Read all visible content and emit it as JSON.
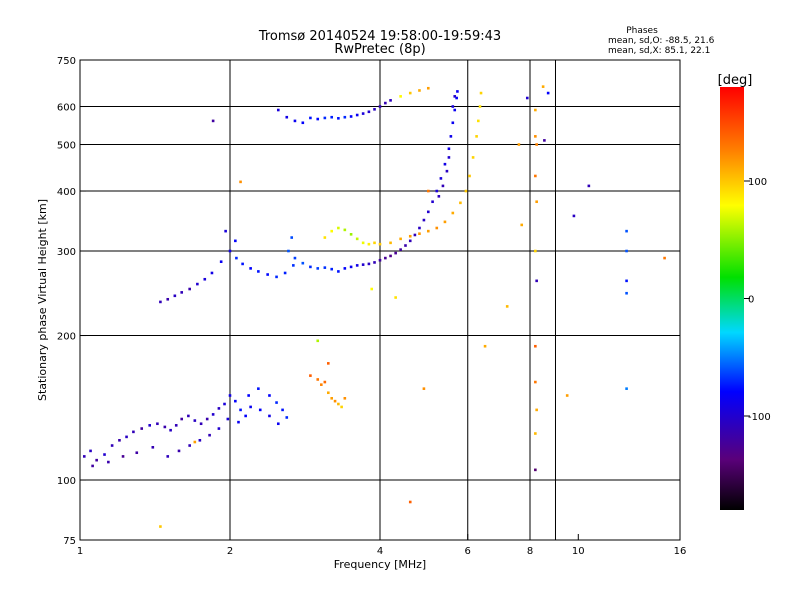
{
  "chart_data": {
    "type": "scatter",
    "title": "Tromsø 20140524 19:58:00-19:59:43",
    "subtitle": "RwPretec (8p)",
    "xlabel": "Frequency [MHz]",
    "ylabel": "Stationary phase Virtual Height [km]",
    "x_scale": "log",
    "y_scale": "log",
    "xlim": [
      1,
      16
    ],
    "ylim": [
      75,
      750
    ],
    "x_ticks": [
      1,
      2,
      4,
      6,
      8,
      10,
      16
    ],
    "y_ticks": [
      75,
      100,
      200,
      300,
      400,
      500,
      600,
      750
    ],
    "grid_x": [
      2,
      4,
      6,
      8,
      9
    ],
    "grid_y": [
      100,
      200,
      300,
      400,
      500,
      600
    ],
    "stats": {
      "header": "Phases",
      "line_o": "mean, sd,O: -88.5, 21.6",
      "line_x": "mean, sd,X:  85.1, 22.1"
    },
    "colorbar": {
      "label": "[deg]",
      "range": [
        -180,
        180
      ],
      "ticks": [
        100,
        0,
        -100
      ],
      "tick_labels": [
        "100",
        "0",
        "-100"
      ]
    },
    "series": [
      {
        "points": [
          [
            1.02,
            112,
            -110
          ],
          [
            1.05,
            115,
            -105
          ],
          [
            1.08,
            110,
            -120
          ],
          [
            1.12,
            113,
            -100
          ],
          [
            1.16,
            118,
            -110
          ],
          [
            1.2,
            121,
            -115
          ],
          [
            1.24,
            123,
            -105
          ],
          [
            1.28,
            126,
            -110
          ],
          [
            1.33,
            128,
            -120
          ],
          [
            1.38,
            130,
            -100
          ],
          [
            1.43,
            131,
            -110
          ],
          [
            1.48,
            129,
            -115
          ],
          [
            1.52,
            127,
            -105
          ],
          [
            1.56,
            130,
            -110
          ],
          [
            1.6,
            134,
            -120
          ],
          [
            1.65,
            136,
            -110
          ],
          [
            1.7,
            133,
            -105
          ],
          [
            1.75,
            131,
            -110
          ],
          [
            1.8,
            134,
            -115
          ],
          [
            1.85,
            137,
            -100
          ],
          [
            1.9,
            141,
            -105
          ],
          [
            1.95,
            144,
            -95
          ],
          [
            2.0,
            150,
            -90
          ],
          [
            2.05,
            146,
            -80
          ],
          [
            2.1,
            140,
            -75
          ],
          [
            2.15,
            136,
            -80
          ],
          [
            2.2,
            142,
            -85
          ],
          [
            2.3,
            140,
            -80
          ],
          [
            2.4,
            136,
            -90
          ],
          [
            2.5,
            131,
            -85
          ],
          [
            2.55,
            140,
            -75
          ],
          [
            2.6,
            135,
            -70
          ],
          [
            1.06,
            107,
            -120
          ],
          [
            1.14,
            109,
            -115
          ],
          [
            1.22,
            112,
            -125
          ],
          [
            1.3,
            114,
            -118
          ],
          [
            1.4,
            117,
            -112
          ],
          [
            1.5,
            112,
            -108
          ],
          [
            1.58,
            115,
            -115
          ],
          [
            1.66,
            118,
            -110
          ],
          [
            1.74,
            121,
            -105
          ],
          [
            1.82,
            124,
            -110
          ],
          [
            1.9,
            128,
            -100
          ],
          [
            1.98,
            134,
            -95
          ],
          [
            2.08,
            132,
            -85
          ],
          [
            2.18,
            150,
            -80
          ],
          [
            2.28,
            155,
            -75
          ],
          [
            2.4,
            150,
            -80
          ],
          [
            2.48,
            145,
            -70
          ],
          [
            1.45,
            235,
            -110
          ],
          [
            1.5,
            238,
            -115
          ],
          [
            1.55,
            242,
            -105
          ],
          [
            1.6,
            246,
            -110
          ],
          [
            1.66,
            250,
            -115
          ],
          [
            1.72,
            256,
            -100
          ],
          [
            1.78,
            262,
            -95
          ],
          [
            1.84,
            270,
            -90
          ],
          [
            1.92,
            285,
            -85
          ],
          [
            2.0,
            300,
            -90
          ],
          [
            2.05,
            315,
            -80
          ],
          [
            1.96,
            330,
            -95
          ],
          [
            2.06,
            290,
            -70
          ],
          [
            2.12,
            282,
            -75
          ],
          [
            2.2,
            276,
            -80
          ],
          [
            2.28,
            272,
            -75
          ],
          [
            2.38,
            268,
            -78
          ],
          [
            2.48,
            265,
            -70
          ],
          [
            2.58,
            270,
            -72
          ],
          [
            2.68,
            280,
            -68
          ],
          [
            2.62,
            300,
            -60
          ],
          [
            2.66,
            320,
            -62
          ],
          [
            2.7,
            290,
            -65
          ],
          [
            2.8,
            283,
            -60
          ],
          [
            2.9,
            278,
            -70
          ],
          [
            3.0,
            276,
            -65
          ],
          [
            3.1,
            277,
            -68
          ],
          [
            3.2,
            275,
            -72
          ],
          [
            3.3,
            272,
            -75
          ],
          [
            3.4,
            276,
            -80
          ],
          [
            3.5,
            278,
            -85
          ],
          [
            3.6,
            280,
            -90
          ],
          [
            3.7,
            281,
            -100
          ],
          [
            3.8,
            282,
            -105
          ],
          [
            3.9,
            284,
            -110
          ],
          [
            4.0,
            287,
            -120
          ],
          [
            4.1,
            290,
            -125
          ],
          [
            4.2,
            293,
            -130
          ],
          [
            4.3,
            297,
            -125
          ],
          [
            4.4,
            302,
            -120
          ],
          [
            4.5,
            308,
            -115
          ],
          [
            4.6,
            315,
            -110
          ],
          [
            4.7,
            324,
            -110
          ],
          [
            4.8,
            335,
            -105
          ],
          [
            4.9,
            348,
            -105
          ],
          [
            5.0,
            362,
            -100
          ],
          [
            5.1,
            380,
            -100
          ],
          [
            5.2,
            400,
            -95
          ],
          [
            5.3,
            425,
            -95
          ],
          [
            5.4,
            455,
            -90
          ],
          [
            5.5,
            490,
            -90
          ],
          [
            5.55,
            520,
            -88
          ],
          [
            5.6,
            555,
            -85
          ],
          [
            5.65,
            590,
            -85
          ],
          [
            5.7,
            625,
            -82
          ],
          [
            5.72,
            645,
            -85
          ],
          [
            5.5,
            470,
            -100
          ],
          [
            5.45,
            440,
            -105
          ],
          [
            5.35,
            410,
            -110
          ],
          [
            5.25,
            390,
            -108
          ],
          [
            5.6,
            600,
            -95
          ],
          [
            5.65,
            630,
            -100
          ],
          [
            3.1,
            320,
            90
          ],
          [
            3.2,
            330,
            80
          ],
          [
            3.3,
            335,
            70
          ],
          [
            3.4,
            332,
            60
          ],
          [
            3.5,
            325,
            55
          ],
          [
            3.6,
            318,
            65
          ],
          [
            3.7,
            312,
            75
          ],
          [
            3.8,
            310,
            85
          ],
          [
            3.9,
            312,
            95
          ],
          [
            4.0,
            310,
            100
          ],
          [
            4.2,
            312,
            105
          ],
          [
            4.4,
            318,
            110
          ],
          [
            4.6,
            322,
            115
          ],
          [
            4.8,
            326,
            118
          ],
          [
            5.0,
            330,
            115
          ],
          [
            5.2,
            335,
            120
          ],
          [
            5.4,
            345,
            115
          ],
          [
            5.6,
            360,
            110
          ],
          [
            5.8,
            378,
            105
          ],
          [
            5.95,
            400,
            100
          ],
          [
            6.05,
            430,
            100
          ],
          [
            6.15,
            470,
            95
          ],
          [
            6.25,
            520,
            95
          ],
          [
            6.3,
            560,
            90
          ],
          [
            6.35,
            600,
            90
          ],
          [
            6.38,
            640,
            95
          ],
          [
            2.5,
            590,
            -95
          ],
          [
            2.6,
            570,
            -90
          ],
          [
            2.7,
            560,
            -85
          ],
          [
            2.8,
            555,
            -80
          ],
          [
            2.9,
            568,
            -75
          ],
          [
            3.0,
            565,
            -78
          ],
          [
            3.1,
            568,
            -70
          ],
          [
            3.2,
            570,
            -72
          ],
          [
            3.3,
            567,
            -75
          ],
          [
            3.4,
            570,
            -70
          ],
          [
            3.5,
            572,
            -80
          ],
          [
            3.6,
            576,
            -85
          ],
          [
            3.7,
            580,
            -95
          ],
          [
            3.8,
            585,
            -100
          ],
          [
            3.9,
            592,
            -105
          ],
          [
            4.0,
            600,
            -110
          ],
          [
            4.1,
            610,
            -112
          ],
          [
            4.2,
            618,
            -108
          ],
          [
            4.4,
            630,
            80
          ],
          [
            4.6,
            640,
            100
          ],
          [
            4.8,
            648,
            110
          ],
          [
            5.0,
            655,
            115
          ],
          [
            2.9,
            165,
            140
          ],
          [
            3.0,
            162,
            130
          ],
          [
            3.05,
            158,
            125
          ],
          [
            3.1,
            160,
            135
          ],
          [
            3.15,
            175,
            140
          ],
          [
            3.15,
            152,
            110
          ],
          [
            3.2,
            148,
            115
          ],
          [
            3.25,
            146,
            120
          ],
          [
            3.3,
            144,
            105
          ],
          [
            3.35,
            142,
            95
          ],
          [
            8.2,
            590,
            110
          ],
          [
            8.2,
            520,
            120
          ],
          [
            8.25,
            500,
            125
          ],
          [
            8.2,
            430,
            130
          ],
          [
            8.25,
            380,
            115
          ],
          [
            8.2,
            300,
            95
          ],
          [
            8.25,
            260,
            -110
          ],
          [
            8.2,
            190,
            140
          ],
          [
            8.2,
            160,
            130
          ],
          [
            8.25,
            140,
            110
          ],
          [
            8.2,
            125,
            105
          ],
          [
            8.2,
            105,
            -140
          ],
          [
            7.6,
            500,
            115
          ],
          [
            7.7,
            340,
            110
          ],
          [
            7.9,
            625,
            -100
          ],
          [
            8.5,
            660,
            110
          ],
          [
            8.55,
            510,
            -120
          ],
          [
            8.7,
            640,
            -80
          ],
          [
            10.5,
            410,
            -110
          ],
          [
            12.5,
            330,
            -60
          ],
          [
            12.5,
            300,
            -60
          ],
          [
            12.5,
            260,
            -75
          ],
          [
            12.5,
            245,
            -60
          ],
          [
            12.5,
            155,
            -50
          ],
          [
            14.9,
            290,
            130
          ],
          [
            9.8,
            355,
            -105
          ],
          [
            9.5,
            150,
            115
          ],
          [
            1.85,
            560,
            -120
          ],
          [
            2.1,
            418,
            120
          ],
          [
            4.6,
            90,
            140
          ],
          [
            4.9,
            155,
            120
          ],
          [
            3.4,
            148,
            120
          ],
          [
            3.85,
            250,
            80
          ],
          [
            4.3,
            240,
            90
          ],
          [
            3.0,
            195,
            60
          ],
          [
            1.45,
            80,
            100
          ],
          [
            1.7,
            120,
            115
          ],
          [
            5.0,
            400,
            130
          ],
          [
            6.5,
            190,
            110
          ],
          [
            7.2,
            230,
            105
          ]
        ]
      }
    ]
  }
}
